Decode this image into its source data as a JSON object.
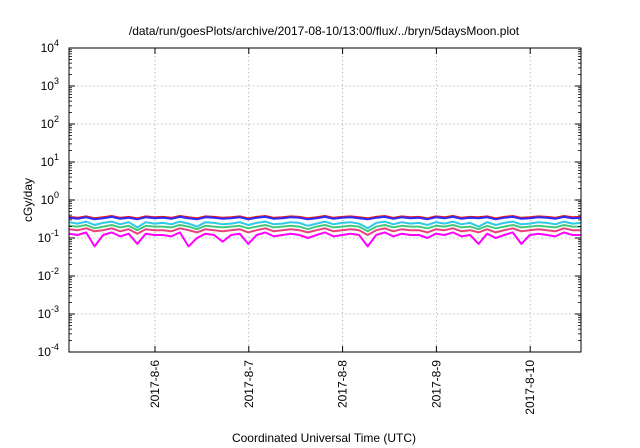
{
  "chart_data": {
    "type": "line",
    "title": "/data/run/goesPlots/archive/2017-08-10/13:00/flux/../bryn/5daysMoon.plot",
    "xlabel": "Coordinated Universal Time (UTC)",
    "ylabel": "cGy/day",
    "yscale": "log",
    "ylim": [
      0.0001,
      10000
    ],
    "xlim": [
      "2017-08-05T02:00",
      "2017-08-10T13:00"
    ],
    "grid": true,
    "legend": "none",
    "x_ticks": [
      "2017-8-6",
      "2017-8-7",
      "2017-8-8",
      "2017-8-9",
      "2017-8-10"
    ],
    "y_ticks": [
      {
        "base": "10",
        "exp": "-4"
      },
      {
        "base": "10",
        "exp": "-3"
      },
      {
        "base": "10",
        "exp": "-2"
      },
      {
        "base": "10",
        "exp": "-1"
      },
      {
        "base": "10",
        "exp": "0"
      },
      {
        "base": "10",
        "exp": "1"
      },
      {
        "base": "10",
        "exp": "2"
      },
      {
        "base": "10",
        "exp": "3"
      },
      {
        "base": "10",
        "exp": "4"
      }
    ],
    "series": [
      {
        "color": "#e41a1c",
        "values": [
          0.36,
          0.34,
          0.37,
          0.33,
          0.35,
          0.38,
          0.34,
          0.36,
          0.33,
          0.37,
          0.35,
          0.36,
          0.34,
          0.38,
          0.35,
          0.33,
          0.37,
          0.36,
          0.34,
          0.35,
          0.37,
          0.33,
          0.36,
          0.38,
          0.34,
          0.35,
          0.37,
          0.36,
          0.33,
          0.35,
          0.38,
          0.34,
          0.36,
          0.37,
          0.35,
          0.33,
          0.36,
          0.38,
          0.34,
          0.37,
          0.35,
          0.36,
          0.33,
          0.37,
          0.35,
          0.38,
          0.34,
          0.36,
          0.35,
          0.37,
          0.33,
          0.36,
          0.38,
          0.34,
          0.35,
          0.37,
          0.36,
          0.34,
          0.38,
          0.35,
          0.36
        ]
      },
      {
        "color": "#2b2bff",
        "values": [
          0.34,
          0.32,
          0.35,
          0.31,
          0.33,
          0.36,
          0.32,
          0.34,
          0.31,
          0.35,
          0.33,
          0.34,
          0.32,
          0.36,
          0.33,
          0.31,
          0.35,
          0.34,
          0.32,
          0.33,
          0.35,
          0.31,
          0.34,
          0.36,
          0.32,
          0.33,
          0.35,
          0.34,
          0.31,
          0.33,
          0.36,
          0.32,
          0.34,
          0.35,
          0.33,
          0.31,
          0.34,
          0.36,
          0.32,
          0.35,
          0.33,
          0.34,
          0.31,
          0.35,
          0.33,
          0.36,
          0.32,
          0.34,
          0.33,
          0.35,
          0.31,
          0.34,
          0.36,
          0.32,
          0.33,
          0.35,
          0.34,
          0.32,
          0.36,
          0.33,
          0.34
        ]
      },
      {
        "color": "#2ec9e8",
        "values": [
          0.26,
          0.24,
          0.27,
          0.22,
          0.25,
          0.27,
          0.23,
          0.26,
          0.19,
          0.26,
          0.24,
          0.25,
          0.23,
          0.27,
          0.24,
          0.2,
          0.26,
          0.25,
          0.23,
          0.24,
          0.26,
          0.22,
          0.25,
          0.27,
          0.23,
          0.24,
          0.26,
          0.25,
          0.21,
          0.24,
          0.27,
          0.23,
          0.25,
          0.26,
          0.24,
          0.18,
          0.25,
          0.27,
          0.23,
          0.26,
          0.24,
          0.25,
          0.22,
          0.26,
          0.24,
          0.27,
          0.23,
          0.25,
          0.2,
          0.26,
          0.22,
          0.25,
          0.27,
          0.23,
          0.24,
          0.26,
          0.25,
          0.23,
          0.27,
          0.24,
          0.25
        ]
      },
      {
        "color": "#44c97a",
        "values": [
          0.21,
          0.2,
          0.22,
          0.18,
          0.2,
          0.22,
          0.19,
          0.21,
          0.16,
          0.21,
          0.2,
          0.2,
          0.19,
          0.22,
          0.2,
          0.17,
          0.21,
          0.2,
          0.19,
          0.2,
          0.21,
          0.18,
          0.2,
          0.22,
          0.19,
          0.2,
          0.21,
          0.2,
          0.17,
          0.2,
          0.22,
          0.19,
          0.2,
          0.21,
          0.2,
          0.15,
          0.2,
          0.22,
          0.19,
          0.21,
          0.2,
          0.2,
          0.18,
          0.21,
          0.2,
          0.22,
          0.19,
          0.2,
          0.17,
          0.21,
          0.18,
          0.2,
          0.22,
          0.19,
          0.2,
          0.21,
          0.2,
          0.19,
          0.22,
          0.2,
          0.2
        ]
      },
      {
        "color": "#e8407a",
        "values": [
          0.17,
          0.16,
          0.18,
          0.15,
          0.16,
          0.18,
          0.15,
          0.17,
          0.13,
          0.17,
          0.16,
          0.16,
          0.15,
          0.18,
          0.16,
          0.14,
          0.17,
          0.16,
          0.15,
          0.16,
          0.17,
          0.14,
          0.16,
          0.18,
          0.15,
          0.16,
          0.17,
          0.16,
          0.14,
          0.16,
          0.18,
          0.15,
          0.16,
          0.17,
          0.16,
          0.12,
          0.16,
          0.18,
          0.15,
          0.17,
          0.16,
          0.16,
          0.14,
          0.17,
          0.16,
          0.18,
          0.15,
          0.16,
          0.14,
          0.17,
          0.14,
          0.16,
          0.18,
          0.15,
          0.16,
          0.17,
          0.16,
          0.15,
          0.18,
          0.16,
          0.16
        ]
      },
      {
        "color": "#ff00ff",
        "values": [
          0.13,
          0.12,
          0.14,
          0.06,
          0.12,
          0.14,
          0.11,
          0.13,
          0.07,
          0.13,
          0.12,
          0.12,
          0.11,
          0.14,
          0.06,
          0.1,
          0.13,
          0.12,
          0.08,
          0.12,
          0.13,
          0.07,
          0.12,
          0.14,
          0.11,
          0.12,
          0.13,
          0.12,
          0.1,
          0.12,
          0.14,
          0.11,
          0.12,
          0.13,
          0.12,
          0.06,
          0.12,
          0.14,
          0.11,
          0.13,
          0.12,
          0.12,
          0.1,
          0.13,
          0.12,
          0.14,
          0.11,
          0.12,
          0.07,
          0.13,
          0.1,
          0.12,
          0.14,
          0.07,
          0.12,
          0.13,
          0.12,
          0.11,
          0.14,
          0.12,
          0.12
        ]
      }
    ]
  }
}
